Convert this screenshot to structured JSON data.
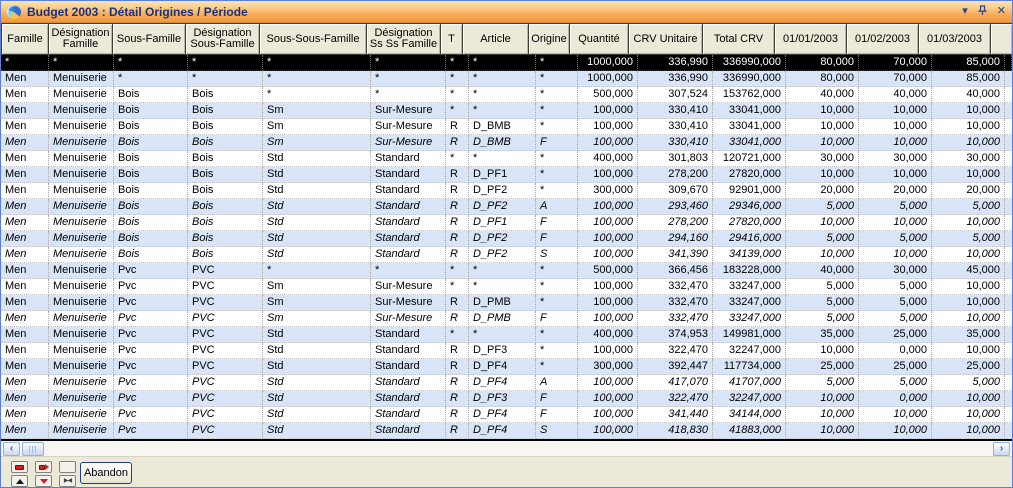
{
  "window": {
    "title": "Budget 2003 : Détail Origines / Période",
    "controls": {
      "collapse": "▾",
      "pin": "pin",
      "close": "✕"
    },
    "colors": {
      "titlebar_top": "#FCE3B4",
      "titlebar_bottom": "#EF9840",
      "title_text": "#19327E",
      "header_bg": "#ECE9D8",
      "row_alt": "#D8E4F8",
      "row_plain": "#FFFFFF",
      "row_selected_bg": "#000000",
      "row_selected_fg": "#FFFFFF",
      "footer_bg": "#ECE9D8"
    }
  },
  "table": {
    "columns": [
      {
        "label": "Famille",
        "width": 48,
        "align": "left"
      },
      {
        "label": "Désignation Famille",
        "width": 65,
        "align": "left"
      },
      {
        "label": "Sous-Famille",
        "width": 74,
        "align": "left"
      },
      {
        "label": "Désignation Sous-Famille",
        "width": 75,
        "align": "left"
      },
      {
        "label": "Sous-Sous-Famille",
        "width": 108,
        "align": "left"
      },
      {
        "label": "Désignation Ss Ss Famille",
        "width": 75,
        "align": "left"
      },
      {
        "label": "T",
        "width": 23,
        "align": "left"
      },
      {
        "label": "Article",
        "width": 67,
        "align": "left"
      },
      {
        "label": "Origine",
        "width": 42,
        "align": "left"
      },
      {
        "label": "Quantité",
        "width": 60,
        "align": "right"
      },
      {
        "label": "CRV Unitaire",
        "width": 75,
        "align": "right"
      },
      {
        "label": "Total CRV",
        "width": 73,
        "align": "right"
      },
      {
        "label": "01/01/2003",
        "width": 73,
        "align": "right"
      },
      {
        "label": "01/02/2003",
        "width": 73,
        "align": "right"
      },
      {
        "label": "01/03/2003",
        "width": 73,
        "align": "right"
      }
    ],
    "rows": [
      {
        "bg": "sel",
        "italic": false,
        "cells": [
          "*",
          "*",
          "*",
          "*",
          "*",
          "*",
          "*",
          "*",
          "*",
          "1000,000",
          "336,990",
          "336990,000",
          "80,000",
          "70,000",
          "85,000"
        ]
      },
      {
        "bg": "alt",
        "italic": false,
        "cells": [
          "Men",
          "Menuiserie",
          "*",
          "*",
          "*",
          "*",
          "*",
          "*",
          "*",
          "1000,000",
          "336,990",
          "336990,000",
          "80,000",
          "70,000",
          "85,000"
        ]
      },
      {
        "bg": "plain",
        "italic": false,
        "cells": [
          "Men",
          "Menuiserie",
          "Bois",
          "Bois",
          "*",
          "*",
          "*",
          "*",
          "*",
          "500,000",
          "307,524",
          "153762,000",
          "40,000",
          "40,000",
          "40,000"
        ]
      },
      {
        "bg": "alt",
        "italic": false,
        "cells": [
          "Men",
          "Menuiserie",
          "Bois",
          "Bois",
          "Sm",
          "Sur-Mesure",
          "*",
          "*",
          "*",
          "100,000",
          "330,410",
          "33041,000",
          "10,000",
          "10,000",
          "10,000"
        ]
      },
      {
        "bg": "plain",
        "italic": false,
        "cells": [
          "Men",
          "Menuiserie",
          "Bois",
          "Bois",
          "Sm",
          "Sur-Mesure",
          "R",
          "D_BMB",
          "*",
          "100,000",
          "330,410",
          "33041,000",
          "10,000",
          "10,000",
          "10,000"
        ]
      },
      {
        "bg": "alt",
        "italic": true,
        "cells": [
          "Men",
          "Menuiserie",
          "Bois",
          "Bois",
          "Sm",
          "Sur-Mesure",
          "R",
          "D_BMB",
          "F",
          "100,000",
          "330,410",
          "33041,000",
          "10,000",
          "10,000",
          "10,000"
        ]
      },
      {
        "bg": "plain",
        "italic": false,
        "cells": [
          "Men",
          "Menuiserie",
          "Bois",
          "Bois",
          "Std",
          "Standard",
          "*",
          "*",
          "*",
          "400,000",
          "301,803",
          "120721,000",
          "30,000",
          "30,000",
          "30,000"
        ]
      },
      {
        "bg": "alt",
        "italic": false,
        "cells": [
          "Men",
          "Menuiserie",
          "Bois",
          "Bois",
          "Std",
          "Standard",
          "R",
          "D_PF1",
          "*",
          "100,000",
          "278,200",
          "27820,000",
          "10,000",
          "10,000",
          "10,000"
        ]
      },
      {
        "bg": "plain",
        "italic": false,
        "cells": [
          "Men",
          "Menuiserie",
          "Bois",
          "Bois",
          "Std",
          "Standard",
          "R",
          "D_PF2",
          "*",
          "300,000",
          "309,670",
          "92901,000",
          "20,000",
          "20,000",
          "20,000"
        ]
      },
      {
        "bg": "alt",
        "italic": true,
        "cells": [
          "Men",
          "Menuiserie",
          "Bois",
          "Bois",
          "Std",
          "Standard",
          "R",
          "D_PF2",
          "A",
          "100,000",
          "293,460",
          "29346,000",
          "5,000",
          "5,000",
          "5,000"
        ]
      },
      {
        "bg": "plain",
        "italic": true,
        "cells": [
          "Men",
          "Menuiserie",
          "Bois",
          "Bois",
          "Std",
          "Standard",
          "R",
          "D_PF1",
          "F",
          "100,000",
          "278,200",
          "27820,000",
          "10,000",
          "10,000",
          "10,000"
        ]
      },
      {
        "bg": "alt",
        "italic": true,
        "cells": [
          "Men",
          "Menuiserie",
          "Bois",
          "Bois",
          "Std",
          "Standard",
          "R",
          "D_PF2",
          "F",
          "100,000",
          "294,160",
          "29416,000",
          "5,000",
          "5,000",
          "5,000"
        ]
      },
      {
        "bg": "plain",
        "italic": true,
        "cells": [
          "Men",
          "Menuiserie",
          "Bois",
          "Bois",
          "Std",
          "Standard",
          "R",
          "D_PF2",
          "S",
          "100,000",
          "341,390",
          "34139,000",
          "10,000",
          "10,000",
          "10,000"
        ]
      },
      {
        "bg": "alt",
        "italic": false,
        "cells": [
          "Men",
          "Menuiserie",
          "Pvc",
          "PVC",
          "*",
          "*",
          "*",
          "*",
          "*",
          "500,000",
          "366,456",
          "183228,000",
          "40,000",
          "30,000",
          "45,000"
        ]
      },
      {
        "bg": "plain",
        "italic": false,
        "cells": [
          "Men",
          "Menuiserie",
          "Pvc",
          "PVC",
          "Sm",
          "Sur-Mesure",
          "*",
          "*",
          "*",
          "100,000",
          "332,470",
          "33247,000",
          "5,000",
          "5,000",
          "10,000"
        ]
      },
      {
        "bg": "alt",
        "italic": false,
        "cells": [
          "Men",
          "Menuiserie",
          "Pvc",
          "PVC",
          "Sm",
          "Sur-Mesure",
          "R",
          "D_PMB",
          "*",
          "100,000",
          "332,470",
          "33247,000",
          "5,000",
          "5,000",
          "10,000"
        ]
      },
      {
        "bg": "plain",
        "italic": true,
        "cells": [
          "Men",
          "Menuiserie",
          "Pvc",
          "PVC",
          "Sm",
          "Sur-Mesure",
          "R",
          "D_PMB",
          "F",
          "100,000",
          "332,470",
          "33247,000",
          "5,000",
          "5,000",
          "10,000"
        ]
      },
      {
        "bg": "alt",
        "italic": false,
        "cells": [
          "Men",
          "Menuiserie",
          "Pvc",
          "PVC",
          "Std",
          "Standard",
          "*",
          "*",
          "*",
          "400,000",
          "374,953",
          "149981,000",
          "35,000",
          "25,000",
          "35,000"
        ]
      },
      {
        "bg": "plain",
        "italic": false,
        "cells": [
          "Men",
          "Menuiserie",
          "Pvc",
          "PVC",
          "Std",
          "Standard",
          "R",
          "D_PF3",
          "*",
          "100,000",
          "322,470",
          "32247,000",
          "10,000",
          "0,000",
          "10,000"
        ]
      },
      {
        "bg": "alt",
        "italic": false,
        "cells": [
          "Men",
          "Menuiserie",
          "Pvc",
          "PVC",
          "Std",
          "Standard",
          "R",
          "D_PF4",
          "*",
          "300,000",
          "392,447",
          "117734,000",
          "25,000",
          "25,000",
          "25,000"
        ]
      },
      {
        "bg": "plain",
        "italic": true,
        "cells": [
          "Men",
          "Menuiserie",
          "Pvc",
          "PVC",
          "Std",
          "Standard",
          "R",
          "D_PF4",
          "A",
          "100,000",
          "417,070",
          "41707,000",
          "5,000",
          "5,000",
          "5,000"
        ]
      },
      {
        "bg": "alt",
        "italic": true,
        "cells": [
          "Men",
          "Menuiserie",
          "Pvc",
          "PVC",
          "Std",
          "Standard",
          "R",
          "D_PF3",
          "F",
          "100,000",
          "322,470",
          "32247,000",
          "10,000",
          "0,000",
          "10,000"
        ]
      },
      {
        "bg": "plain",
        "italic": true,
        "cells": [
          "Men",
          "Menuiserie",
          "Pvc",
          "PVC",
          "Std",
          "Standard",
          "R",
          "D_PF4",
          "F",
          "100,000",
          "341,440",
          "34144,000",
          "10,000",
          "10,000",
          "10,000"
        ]
      },
      {
        "bg": "alt",
        "italic": true,
        "cells": [
          "Men",
          "Menuiserie",
          "Pvc",
          "PVC",
          "Std",
          "Standard",
          "R",
          "D_PF4",
          "S",
          "100,000",
          "418,830",
          "41883,000",
          "10,000",
          "10,000",
          "10,000"
        ]
      }
    ]
  },
  "scrollbar": {
    "left_arrow": "‹",
    "right_arrow": "›"
  },
  "footer": {
    "abandon_label": "Abandon"
  }
}
